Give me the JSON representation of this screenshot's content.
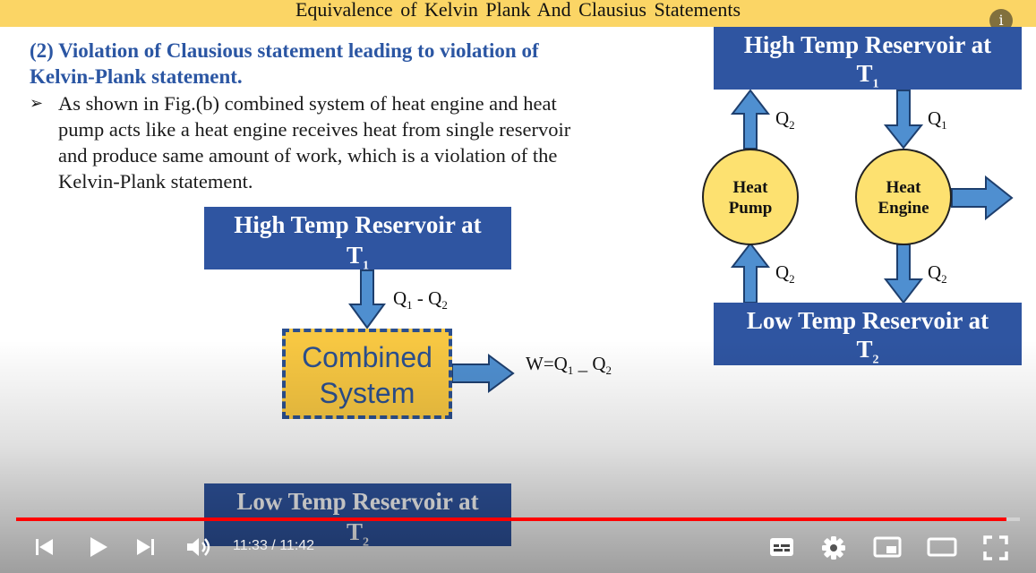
{
  "slide": {
    "title": "Equivalence  of Kelvin Plank  And Clausius Statements",
    "heading_line1": "(2) Violation of Clausious statement leading to violation of",
    "heading_line2": "Kelvin-Plank statement.",
    "bullet_marker": "➢",
    "bullet_line1": "As shown in Fig.(b) combined system of heat engine and heat",
    "bullet_line2": "pump acts like a heat engine receives heat from single reservoir",
    "bullet_line3": "and produce same amount of work, which is a violation of the",
    "bullet_line4": "Kelvin-Plank  statement."
  },
  "fig_b": {
    "high_res_line1": "High Temp Reservoir at",
    "high_res_line2": "T",
    "high_res_sub": "1",
    "heat_in_Q": "Q",
    "heat_in_sub1": "1",
    "heat_in_minus": " - Q",
    "heat_in_sub2": "2",
    "combined_line1": "Combined",
    "combined_line2": "System",
    "work_prefix": "W=Q",
    "work_sub1": "1",
    "work_mid": " _ Q",
    "work_sub2": "2",
    "low_res_line1": "Low Temp Reservoir at",
    "low_res_line2": "T",
    "low_res_sub": "2"
  },
  "fig_a": {
    "high_res_line1": "High Temp Reservoir at",
    "high_res_line2": "T",
    "high_res_sub": "1",
    "pump_out_Q": "Q",
    "pump_out_sub": "2",
    "engine_in_Q": "Q",
    "engine_in_sub": "1",
    "pump_line1": "Heat",
    "pump_line2": "Pump",
    "engine_line1": "Heat",
    "engine_line2": "Engine",
    "pump_in_Q": "Q",
    "pump_in_sub": "2",
    "engine_out_Q": "Q",
    "engine_out_sub": "2",
    "low_res_line1": "Low Temp Reservoir at",
    "low_res_line2": "T",
    "low_res_sub": "2"
  },
  "player": {
    "info_glyph": "i",
    "current_time": "11:33",
    "separator": " / ",
    "duration": "11:42",
    "progress_fraction": 0.987,
    "accent_color": "#ff0000",
    "icons": [
      "previous-icon",
      "play-icon",
      "next-icon",
      "volume-icon",
      "subtitles-icon",
      "settings-icon",
      "miniplayer-icon",
      "theater-icon",
      "fullscreen-icon"
    ]
  },
  "colors": {
    "title_bar": "#fbd565",
    "heading_blue": "#2b56a3",
    "reservoir_blue": "#2f55a1",
    "arrow_blue": "#4f8fd0",
    "combined_fill": "#f7c742",
    "circle_fill": "#fde170"
  }
}
